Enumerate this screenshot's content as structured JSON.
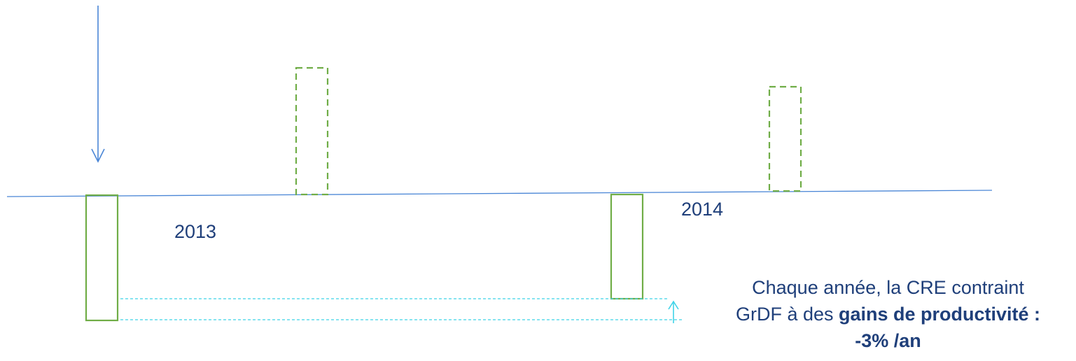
{
  "labels": {
    "year_2013": "2013",
    "year_2014": "2014"
  },
  "caption": {
    "line1": "Chaque année, la CRE contraint",
    "line2_prefix": "GrDF à des ",
    "line2_bold": "gains de productivité :",
    "line3": "-3% /an"
  },
  "colors": {
    "axis": "#4a86d6",
    "bar": "#70ad47",
    "guide": "#3fd3e8",
    "text": "#1f3f7a"
  },
  "icons": {
    "down_arrow": "arrow-down",
    "up_arrow": "arrow-up"
  }
}
